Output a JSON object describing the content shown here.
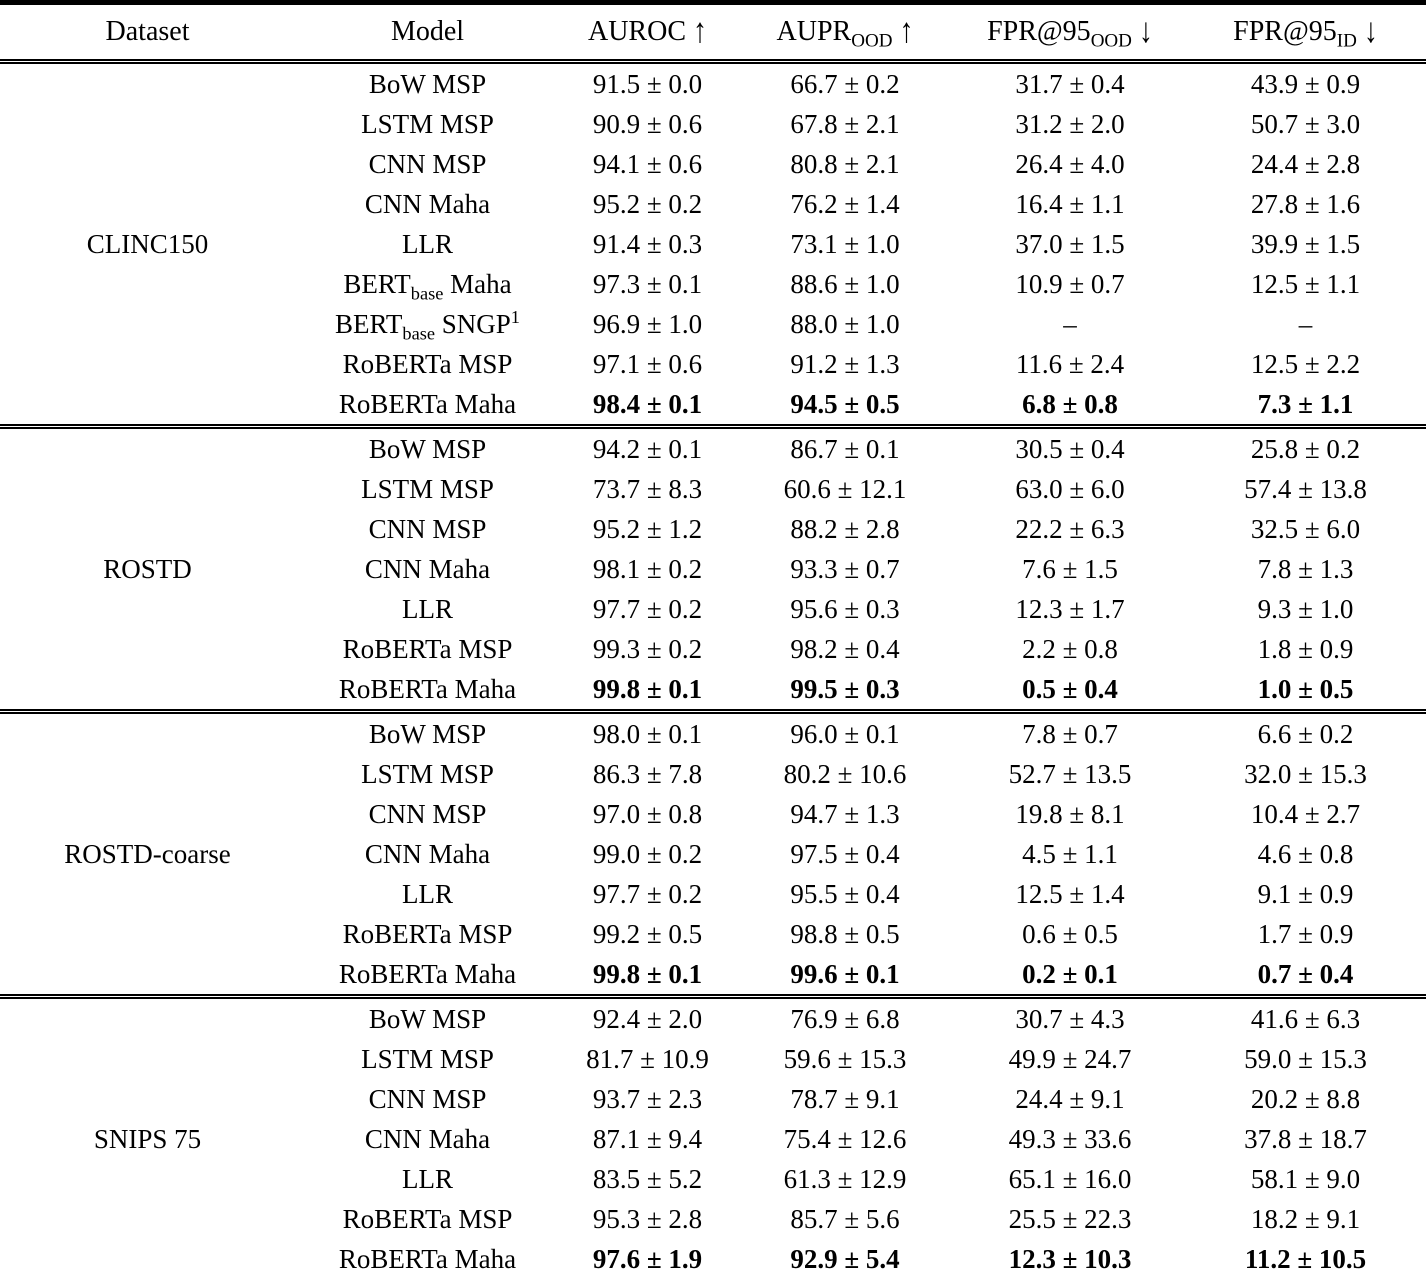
{
  "table": {
    "columns": [
      {
        "id": "dataset",
        "label": "Dataset"
      },
      {
        "id": "model",
        "label": "Model"
      },
      {
        "id": "auroc",
        "label": "AUROC ↑"
      },
      {
        "id": "aupr-ood",
        "label": "AUPR_{OOD} ↑"
      },
      {
        "id": "fpr95-ood",
        "label": "FPR@95_{OOD} ↓"
      },
      {
        "id": "fpr95-id",
        "label": "FPR@95_{ID} ↓"
      }
    ],
    "groups": [
      {
        "dataset": "CLINC150",
        "rows": [
          {
            "model": "BoW MSP",
            "values": [
              "91.5 ± 0.0",
              "66.7 ± 0.2",
              "31.7 ± 0.4",
              "43.9 ± 0.9"
            ],
            "bold": false
          },
          {
            "model": "LSTM MSP",
            "values": [
              "90.9 ± 0.6",
              "67.8 ± 2.1",
              "31.2 ± 2.0",
              "50.7 ± 3.0"
            ],
            "bold": false
          },
          {
            "model": "CNN MSP",
            "values": [
              "94.1 ± 0.6",
              "80.8 ± 2.1",
              "26.4 ± 4.0",
              "24.4 ± 2.8"
            ],
            "bold": false
          },
          {
            "model": "CNN Maha",
            "values": [
              "95.2 ± 0.2",
              "76.2 ± 1.4",
              "16.4 ± 1.1",
              "27.8 ± 1.6"
            ],
            "bold": false
          },
          {
            "model": "LLR",
            "values": [
              "91.4 ± 0.3",
              "73.1 ± 1.0",
              "37.0 ± 1.5",
              "39.9 ± 1.5"
            ],
            "bold": false
          },
          {
            "model": "BERT_{base} Maha",
            "values": [
              "97.3 ± 0.1",
              "88.6 ± 1.0",
              "10.9 ± 0.7",
              "12.5 ± 1.1"
            ],
            "bold": false
          },
          {
            "model": "BERT_{base} SNGP^{1}",
            "values": [
              "96.9 ± 1.0",
              "88.0 ± 1.0",
              "–",
              "–"
            ],
            "bold": false
          },
          {
            "model": "RoBERTa MSP",
            "values": [
              "97.1 ± 0.6",
              "91.2 ± 1.3",
              "11.6 ± 2.4",
              "12.5 ± 2.2"
            ],
            "bold": false
          },
          {
            "model": "RoBERTa Maha",
            "values": [
              "98.4 ± 0.1",
              "94.5 ± 0.5",
              "6.8 ± 0.8",
              "7.3 ± 1.1"
            ],
            "bold": true
          }
        ]
      },
      {
        "dataset": "ROSTD",
        "rows": [
          {
            "model": "BoW MSP",
            "values": [
              "94.2 ± 0.1",
              "86.7 ± 0.1",
              "30.5 ± 0.4",
              "25.8 ± 0.2"
            ],
            "bold": false
          },
          {
            "model": "LSTM MSP",
            "values": [
              "73.7 ± 8.3",
              "60.6 ± 12.1",
              "63.0 ± 6.0",
              "57.4 ± 13.8"
            ],
            "bold": false
          },
          {
            "model": "CNN MSP",
            "values": [
              "95.2 ± 1.2",
              "88.2 ± 2.8",
              "22.2 ± 6.3",
              "32.5 ± 6.0"
            ],
            "bold": false
          },
          {
            "model": "CNN Maha",
            "values": [
              "98.1 ± 0.2",
              "93.3 ± 0.7",
              "7.6 ± 1.5",
              "7.8 ± 1.3"
            ],
            "bold": false
          },
          {
            "model": "LLR",
            "values": [
              "97.7 ± 0.2",
              "95.6 ± 0.3",
              "12.3 ± 1.7",
              "9.3 ± 1.0"
            ],
            "bold": false
          },
          {
            "model": "RoBERTa MSP",
            "values": [
              "99.3 ± 0.2",
              "98.2 ± 0.4",
              "2.2 ± 0.8",
              "1.8 ± 0.9"
            ],
            "bold": false
          },
          {
            "model": "RoBERTa Maha",
            "values": [
              "99.8 ± 0.1",
              "99.5 ± 0.3",
              "0.5 ± 0.4",
              "1.0 ± 0.5"
            ],
            "bold": true
          }
        ]
      },
      {
        "dataset": "ROSTD-coarse",
        "rows": [
          {
            "model": "BoW MSP",
            "values": [
              "98.0 ± 0.1",
              "96.0 ± 0.1",
              "7.8 ± 0.7",
              "6.6 ± 0.2"
            ],
            "bold": false
          },
          {
            "model": "LSTM MSP",
            "values": [
              "86.3 ± 7.8",
              "80.2 ± 10.6",
              "52.7 ± 13.5",
              "32.0 ± 15.3"
            ],
            "bold": false
          },
          {
            "model": "CNN MSP",
            "values": [
              "97.0 ± 0.8",
              "94.7 ± 1.3",
              "19.8 ± 8.1",
              "10.4 ± 2.7"
            ],
            "bold": false
          },
          {
            "model": "CNN Maha",
            "values": [
              "99.0 ± 0.2",
              "97.5 ± 0.4",
              "4.5 ± 1.1",
              "4.6 ± 0.8"
            ],
            "bold": false
          },
          {
            "model": "LLR",
            "values": [
              "97.7 ± 0.2",
              "95.5 ± 0.4",
              "12.5 ± 1.4",
              "9.1 ± 0.9"
            ],
            "bold": false
          },
          {
            "model": "RoBERTa MSP",
            "values": [
              "99.2 ± 0.5",
              "98.8 ± 0.5",
              "0.6 ± 0.5",
              "1.7 ± 0.9"
            ],
            "bold": false
          },
          {
            "model": "RoBERTa Maha",
            "values": [
              "99.8 ± 0.1",
              "99.6 ± 0.1",
              "0.2 ± 0.1",
              "0.7 ± 0.4"
            ],
            "bold": true
          }
        ]
      },
      {
        "dataset": "SNIPS 75",
        "rows": [
          {
            "model": "BoW MSP",
            "values": [
              "92.4 ± 2.0",
              "76.9 ± 6.8",
              "30.7 ± 4.3",
              "41.6 ± 6.3"
            ],
            "bold": false
          },
          {
            "model": "LSTM MSP",
            "values": [
              "81.7 ± 10.9",
              "59.6 ± 15.3",
              "49.9 ± 24.7",
              "59.0 ± 15.3"
            ],
            "bold": false
          },
          {
            "model": "CNN MSP",
            "values": [
              "93.7 ± 2.3",
              "78.7 ± 9.1",
              "24.4 ± 9.1",
              "20.2 ± 8.8"
            ],
            "bold": false
          },
          {
            "model": "CNN Maha",
            "values": [
              "87.1 ± 9.4",
              "75.4 ± 12.6",
              "49.3 ± 33.6",
              "37.8 ± 18.7"
            ],
            "bold": false
          },
          {
            "model": "LLR",
            "values": [
              "83.5 ± 5.2",
              "61.3 ± 12.9",
              "65.1 ± 16.0",
              "58.1 ± 9.0"
            ],
            "bold": false
          },
          {
            "model": "RoBERTa MSP",
            "values": [
              "95.3 ± 2.8",
              "85.7 ± 5.6",
              "25.5 ± 22.3",
              "18.2 ± 9.1"
            ],
            "bold": false
          },
          {
            "model": "RoBERTa Maha",
            "values": [
              "97.6 ± 1.9",
              "92.9 ± 5.4",
              "12.3 ± 10.3",
              "11.2 ± 10.5"
            ],
            "bold": true
          }
        ]
      }
    ]
  }
}
